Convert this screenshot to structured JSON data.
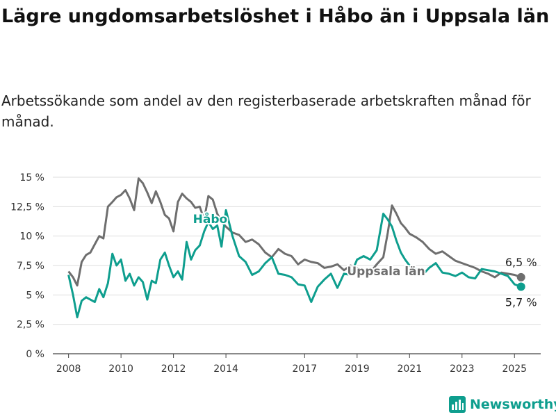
{
  "title": "Lägre ungdomsarbetslöshet i Håbo än i Uppsala län",
  "subtitle": "Arbetssökande som andel av den registerbaserade arbetskraften månad för månad.",
  "brand": {
    "name": "Newsworthy",
    "color": "#0e9e8e",
    "icon": "bar-chart-logo-icon"
  },
  "chart_data": {
    "type": "line",
    "title": "Lägre ungdomsarbetslöshet i Håbo än i Uppsala län",
    "subtitle": "Arbetssökande som andel av den registerbaserade arbetskraften månad för månad.",
    "xlabel": "",
    "ylabel": "",
    "xlim": [
      2007.4,
      2026.0
    ],
    "ylim": [
      0,
      15
    ],
    "yticks": [
      0,
      2.5,
      5,
      7.5,
      10,
      12.5,
      15
    ],
    "ytick_labels": [
      "0 %",
      "2,5 %",
      "5 %",
      "7,5 %",
      "10 %",
      "12,5 %",
      "15 %"
    ],
    "xticks": [
      2008,
      2010,
      2012,
      2014,
      2017,
      2019,
      2021,
      2023,
      2025
    ],
    "xtick_labels": [
      "2008",
      "2010",
      "2012",
      "2014",
      "2017",
      "2019",
      "2021",
      "2023",
      "2025"
    ],
    "grid": true,
    "legend": "inline labels",
    "series": [
      {
        "name": "Uppsala län",
        "color": "#6e6e6e",
        "end_label": "6,5 %",
        "x": [
          2008.0,
          2008.17,
          2008.33,
          2008.5,
          2008.67,
          2008.83,
          2009.0,
          2009.17,
          2009.33,
          2009.5,
          2009.67,
          2009.83,
          2010.0,
          2010.17,
          2010.33,
          2010.5,
          2010.67,
          2010.83,
          2011.0,
          2011.17,
          2011.33,
          2011.5,
          2011.67,
          2011.83,
          2012.0,
          2012.17,
          2012.33,
          2012.5,
          2012.67,
          2012.83,
          2013.0,
          2013.17,
          2013.33,
          2013.5,
          2013.67,
          2013.83,
          2014.0,
          2014.25,
          2014.5,
          2014.75,
          2015.0,
          2015.25,
          2015.5,
          2015.75,
          2016.0,
          2016.25,
          2016.5,
          2016.75,
          2017.0,
          2017.25,
          2017.5,
          2017.75,
          2018.0,
          2018.25,
          2018.5,
          2018.75,
          2019.0,
          2019.25,
          2019.5,
          2019.75,
          2020.0,
          2020.17,
          2020.33,
          2020.5,
          2020.67,
          2020.83,
          2021.0,
          2021.25,
          2021.5,
          2021.75,
          2022.0,
          2022.25,
          2022.5,
          2022.75,
          2023.0,
          2023.25,
          2023.5,
          2023.75,
          2024.0,
          2024.25,
          2024.5,
          2024.75,
          2025.0,
          2025.25
        ],
        "values": [
          7.0,
          6.5,
          5.8,
          7.8,
          8.4,
          8.6,
          9.3,
          10.0,
          9.8,
          12.5,
          12.9,
          13.3,
          13.5,
          13.9,
          13.2,
          12.2,
          14.9,
          14.5,
          13.7,
          12.8,
          13.8,
          12.9,
          11.8,
          11.5,
          10.4,
          12.9,
          13.6,
          13.2,
          12.9,
          12.4,
          12.5,
          11.4,
          13.4,
          13.1,
          11.9,
          11.2,
          10.8,
          10.3,
          10.1,
          9.5,
          9.7,
          9.3,
          8.6,
          8.2,
          8.9,
          8.5,
          8.3,
          7.6,
          8.0,
          7.8,
          7.7,
          7.3,
          7.4,
          7.6,
          7.1,
          7.5,
          7.3,
          7.1,
          6.9,
          7.6,
          8.2,
          10.3,
          12.6,
          11.9,
          11.1,
          10.7,
          10.2,
          9.9,
          9.5,
          8.9,
          8.5,
          8.7,
          8.3,
          7.9,
          7.7,
          7.5,
          7.3,
          7.0,
          6.8,
          6.5,
          6.9,
          6.8,
          6.7,
          6.5
        ]
      },
      {
        "name": "Håbo",
        "color": "#0e9e8e",
        "end_label": "5,7 %",
        "x": [
          2008.0,
          2008.17,
          2008.33,
          2008.5,
          2008.67,
          2008.83,
          2009.0,
          2009.17,
          2009.33,
          2009.5,
          2009.67,
          2009.83,
          2010.0,
          2010.17,
          2010.33,
          2010.5,
          2010.67,
          2010.83,
          2011.0,
          2011.17,
          2011.33,
          2011.5,
          2011.67,
          2011.83,
          2012.0,
          2012.17,
          2012.33,
          2012.5,
          2012.67,
          2012.83,
          2013.0,
          2013.17,
          2013.33,
          2013.5,
          2013.67,
          2013.83,
          2014.0,
          2014.25,
          2014.5,
          2014.75,
          2015.0,
          2015.25,
          2015.5,
          2015.75,
          2016.0,
          2016.25,
          2016.5,
          2016.75,
          2017.0,
          2017.25,
          2017.5,
          2017.75,
          2018.0,
          2018.25,
          2018.5,
          2018.75,
          2019.0,
          2019.25,
          2019.5,
          2019.75,
          2020.0,
          2020.17,
          2020.33,
          2020.5,
          2020.67,
          2020.83,
          2021.0,
          2021.25,
          2021.5,
          2021.75,
          2022.0,
          2022.25,
          2022.5,
          2022.75,
          2023.0,
          2023.25,
          2023.5,
          2023.75,
          2024.0,
          2024.25,
          2024.5,
          2024.75,
          2025.0,
          2025.25
        ],
        "values": [
          6.7,
          5.0,
          3.1,
          4.5,
          4.8,
          4.6,
          4.4,
          5.5,
          4.8,
          6.0,
          8.5,
          7.5,
          8.0,
          6.2,
          6.8,
          5.8,
          6.5,
          6.1,
          4.6,
          6.2,
          6.0,
          8.0,
          8.6,
          7.5,
          6.5,
          7.0,
          6.3,
          9.5,
          8.0,
          8.8,
          9.2,
          10.4,
          11.2,
          10.6,
          10.9,
          9.1,
          12.2,
          10.0,
          8.3,
          7.8,
          6.7,
          7.0,
          7.7,
          8.2,
          6.8,
          6.7,
          6.5,
          5.9,
          5.8,
          4.4,
          5.7,
          6.3,
          6.8,
          5.6,
          6.8,
          6.7,
          8.0,
          8.3,
          8.0,
          8.8,
          11.9,
          11.4,
          10.8,
          9.6,
          8.6,
          8.0,
          7.5,
          7.2,
          6.7,
          7.3,
          7.7,
          6.9,
          6.8,
          6.6,
          6.9,
          6.5,
          6.4,
          7.2,
          7.1,
          7.0,
          6.8,
          6.6,
          5.9,
          5.7
        ]
      }
    ]
  }
}
